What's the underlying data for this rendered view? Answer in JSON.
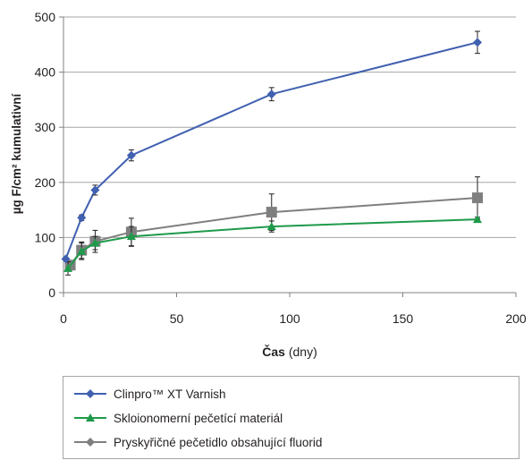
{
  "chart_data": {
    "type": "line",
    "xlabel_main": "Čas",
    "xlabel_unit": "(dny)",
    "ylabel": "µg F/cm² kumulativní",
    "xlim": [
      0,
      200
    ],
    "ylim": [
      0,
      500
    ],
    "xticks": [
      0,
      50,
      100,
      150,
      200
    ],
    "yticks": [
      0,
      100,
      200,
      300,
      400,
      500
    ],
    "grid": "horizontal",
    "legend_position": "bottom",
    "series": [
      {
        "name": "Clinpro™ XT Varnish",
        "color": "#4060b0",
        "marker": "diamond",
        "x": [
          1,
          8,
          14,
          30,
          92,
          183
        ],
        "y": [
          61,
          136,
          186,
          249,
          360,
          454
        ],
        "err": [
          3,
          5,
          9,
          10,
          12,
          20
        ]
      },
      {
        "name": "Skloionomerní pečetící materiál",
        "color": "#1e9a4a",
        "marker": "triangle",
        "x": [
          2,
          8,
          14,
          30,
          92,
          183
        ],
        "y": [
          44,
          75,
          90,
          102,
          120,
          133
        ],
        "err": [
          12,
          15,
          12,
          18,
          10,
          4
        ]
      },
      {
        "name": "Pryskyřičné pečetidlo obsahující fluorid",
        "color": "#7f7f7f",
        "marker": "square",
        "x": [
          3,
          8,
          14,
          30,
          92,
          183
        ],
        "y": [
          50,
          77,
          93,
          110,
          146,
          172
        ],
        "err": [
          8,
          15,
          20,
          25,
          33,
          38
        ]
      }
    ]
  }
}
